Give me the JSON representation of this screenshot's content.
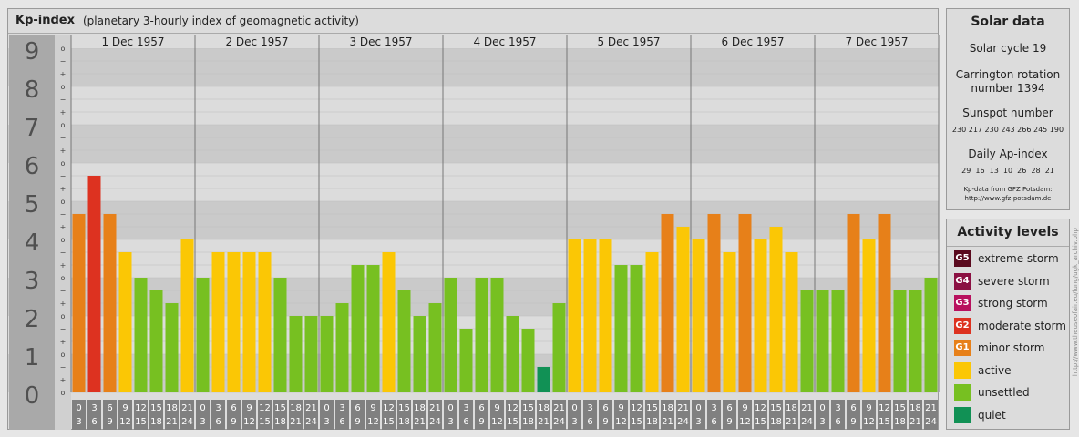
{
  "header": {
    "title": "Kp-index",
    "subtitle": "(planetary 3-hourly index of geomagnetic activity)"
  },
  "chart_data": {
    "type": "bar",
    "title": "Kp-index",
    "subtitle": "(planetary 3-hourly index of geomagnetic activity)",
    "ylim": [
      0,
      9
    ],
    "y_ticks": [
      "0",
      "1",
      "2",
      "3",
      "4",
      "5",
      "6",
      "7",
      "8",
      "9"
    ],
    "minor_ticks": [
      "o",
      "+",
      "−"
    ],
    "days": [
      "1 Dec 1957",
      "2 Dec 1957",
      "3 Dec 1957",
      "4 Dec 1957",
      "5 Dec 1957",
      "6 Dec 1957",
      "7 Dec 1957"
    ],
    "hour_labels": [
      [
        "0",
        "3"
      ],
      [
        "3",
        "6"
      ],
      [
        "6",
        "9"
      ],
      [
        "9",
        "12"
      ],
      [
        "12",
        "15"
      ],
      [
        "15",
        "18"
      ],
      [
        "18",
        "21"
      ],
      [
        "21",
        "24"
      ]
    ],
    "grid": true,
    "values": [
      4.667,
      5.667,
      4.667,
      3.667,
      3.0,
      2.667,
      2.333,
      4.0,
      3.0,
      3.667,
      3.667,
      3.667,
      3.667,
      3.0,
      2.0,
      2.0,
      2.0,
      2.333,
      3.333,
      3.333,
      3.667,
      2.667,
      2.0,
      2.333,
      3.0,
      1.667,
      3.0,
      3.0,
      2.0,
      1.667,
      0.667,
      2.333,
      4.0,
      4.0,
      4.0,
      3.333,
      3.333,
      3.667,
      4.667,
      4.333,
      4.0,
      4.667,
      3.667,
      4.667,
      4.0,
      4.333,
      3.667,
      2.667,
      2.667,
      2.667,
      4.667,
      4.0,
      4.667,
      2.667,
      2.667,
      3.0
    ],
    "colors": {
      "quiet": "#119155",
      "unsettled": "#77c021",
      "active": "#fbc705",
      "minor_storm": "#e78019",
      "moderate_storm": "#dd3220",
      "band_dark": "#cacaca",
      "band_light": "#dcdcdc",
      "axis_panel": "#a9a9a9",
      "hour_cell": "#808080"
    }
  },
  "solar": {
    "title": "Solar data",
    "cycle": "Solar cycle 19",
    "carrington_line1": "Carrington rotation",
    "carrington_line2": "number 1394",
    "sunspot_label": "Sunspot number",
    "sunspot_values": "230 217 230 243 266 245 190",
    "ap_label": "Daily Ap-index",
    "ap_values": "29  16  13  10  26  28  21",
    "source_line1": "Kp-data from GFZ Potsdam:",
    "source_line2": "http://www.gfz-potsdam.de"
  },
  "activity": {
    "title": "Activity levels",
    "levels": [
      {
        "badge": "G5",
        "label": "extreme storm",
        "color": "#5a0a1e"
      },
      {
        "badge": "G4",
        "label": "severe storm",
        "color": "#8b1042"
      },
      {
        "badge": "G3",
        "label": "strong storm",
        "color": "#b8115e"
      },
      {
        "badge": "G2",
        "label": "moderate storm",
        "color": "#dd3220"
      },
      {
        "badge": "G1",
        "label": "minor storm",
        "color": "#e78019"
      },
      {
        "badge": "",
        "label": "active",
        "color": "#fbc705"
      },
      {
        "badge": "",
        "label": "unsettled",
        "color": "#77c021"
      },
      {
        "badge": "",
        "label": "quiet",
        "color": "#119155"
      }
    ]
  },
  "watermark": "http://www.theuseofair.eu/lung/ugk_archiv.php"
}
